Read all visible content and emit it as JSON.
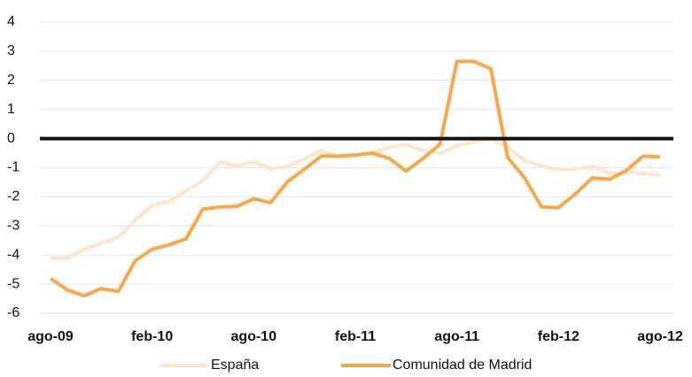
{
  "chart_data": {
    "type": "line",
    "categories": [
      "ago-09",
      null,
      null,
      null,
      null,
      null,
      "feb-10",
      null,
      null,
      null,
      null,
      null,
      "ago-10",
      null,
      null,
      null,
      null,
      null,
      "feb-11",
      null,
      null,
      null,
      null,
      null,
      "ago-11",
      null,
      null,
      null,
      null,
      null,
      "feb-12",
      null,
      null,
      null,
      null,
      null,
      "ago-12"
    ],
    "series": [
      {
        "name": "España",
        "color": "#fde6cc",
        "values": [
          -4.1,
          -4.1,
          -3.8,
          -3.6,
          -3.4,
          -2.8,
          -2.3,
          -2.15,
          -1.8,
          -1.45,
          -0.8,
          -0.95,
          -0.8,
          -1.05,
          -0.95,
          -0.7,
          -0.4,
          -0.65,
          -0.6,
          -0.5,
          -0.3,
          -0.2,
          -0.4,
          -0.5,
          -0.25,
          -0.1,
          0,
          -0.3,
          -0.75,
          -0.95,
          -1.05,
          -1.05,
          -0.95,
          -1.2,
          -1.15,
          -1.2,
          -1.25
        ]
      },
      {
        "name": "Comunidad de Madrid",
        "color": "#f5a94a",
        "values": [
          -4.8,
          -5.2,
          -5.4,
          -5.15,
          -5.25,
          -4.2,
          -3.8,
          -3.65,
          -3.45,
          -2.42,
          -2.35,
          -2.33,
          -2.07,
          -2.2,
          -1.48,
          -1.05,
          -0.6,
          -0.6,
          -0.56,
          -0.5,
          -0.68,
          -1.12,
          -0.68,
          -0.2,
          2.65,
          2.65,
          2.4,
          -0.65,
          -1.35,
          -2.35,
          -2.37,
          -1.9,
          -1.35,
          -1.4,
          -1.1,
          -0.6,
          -0.63
        ]
      }
    ],
    "ylim": [
      -6,
      4
    ],
    "yticks": [
      -6,
      -5,
      -4,
      -3,
      -2,
      -1,
      0,
      1,
      2,
      3,
      4
    ],
    "grid": true,
    "zero_line": true,
    "legend": "bottom"
  }
}
